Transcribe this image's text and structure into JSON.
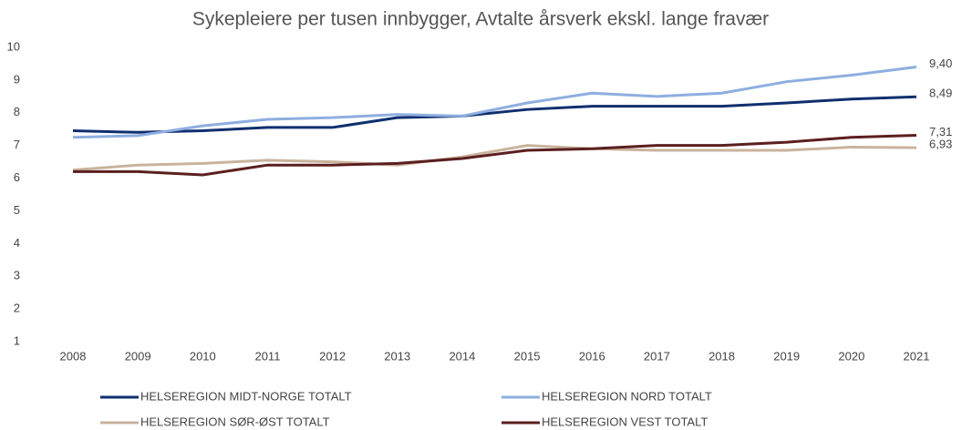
{
  "chart_data": {
    "type": "line",
    "title": "Sykepleiere per tusen innbygger, Avtalte årsverk ekskl. lange fravær",
    "categories": [
      "2008",
      "2009",
      "2010",
      "2011",
      "2012",
      "2013",
      "2014",
      "2015",
      "2016",
      "2017",
      "2018",
      "2019",
      "2020",
      "2021"
    ],
    "series": [
      {
        "name": "HELSEREGION MIDT-NORGE TOTALT",
        "color": "#0f2f6e",
        "values": [
          7.45,
          7.4,
          7.45,
          7.55,
          7.55,
          7.85,
          7.9,
          8.1,
          8.2,
          8.2,
          8.2,
          8.3,
          8.42,
          8.49
        ],
        "value_labels": [
          null,
          null,
          null,
          null,
          null,
          null,
          null,
          null,
          null,
          null,
          null,
          null,
          null,
          "8,49"
        ]
      },
      {
        "name": "HELSEREGION NORD TOTALT",
        "color": "#8eaee0",
        "values": [
          7.25,
          7.3,
          7.6,
          7.8,
          7.85,
          7.95,
          7.9,
          8.3,
          8.6,
          8.5,
          8.6,
          8.95,
          9.15,
          9.4
        ],
        "value_labels": [
          null,
          null,
          null,
          null,
          null,
          null,
          null,
          null,
          null,
          null,
          null,
          null,
          null,
          "9,40"
        ]
      },
      {
        "name": "HELSEREGION SØR-ØST TOTALT",
        "color": "#c9b39c",
        "values": [
          6.25,
          6.4,
          6.45,
          6.55,
          6.5,
          6.4,
          6.65,
          7.0,
          6.9,
          6.85,
          6.85,
          6.85,
          6.95,
          6.93
        ],
        "value_labels": [
          null,
          null,
          null,
          null,
          null,
          null,
          null,
          null,
          null,
          null,
          null,
          null,
          null,
          "6,93"
        ]
      },
      {
        "name": "HELSEREGION VEST TOTALT",
        "color": "#5b1f1f",
        "values": [
          6.2,
          6.2,
          6.1,
          6.4,
          6.4,
          6.45,
          6.6,
          6.85,
          6.9,
          7.0,
          7.0,
          7.1,
          7.25,
          7.31
        ],
        "value_labels": [
          null,
          null,
          null,
          null,
          null,
          null,
          null,
          null,
          null,
          null,
          null,
          null,
          null,
          "7,31"
        ]
      }
    ],
    "ylim": [
      1,
      10
    ],
    "yticks": [
      1,
      2,
      3,
      4,
      5,
      6,
      7,
      8,
      9,
      10
    ],
    "grid": false
  }
}
